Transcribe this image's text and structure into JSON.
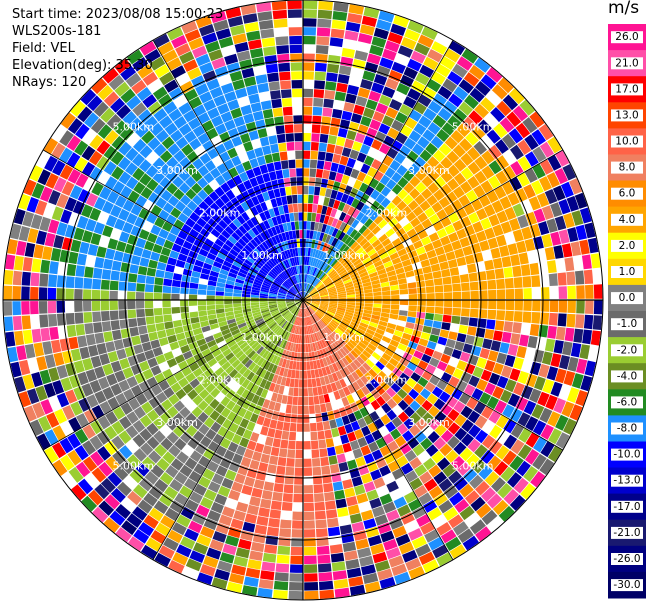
{
  "header": {
    "start_time": "Start time: 2023/08/08 15:00:23",
    "instrument": "WLS200s-181",
    "field": "Field: VEL",
    "elevation": "Elevation(deg): 35.30",
    "nrays": "NRays: 120"
  },
  "chart_data": {
    "type": "heatmap",
    "projection": "polar (PPI)",
    "field": "VEL",
    "units": "m/s",
    "nrays": 120,
    "range_rings": [
      {
        "label": "1.00km",
        "range_km": 1.0
      },
      {
        "label": "2.00km",
        "range_km": 2.0
      },
      {
        "label": "3.00km",
        "range_km": 3.0
      },
      {
        "label": "5.00km",
        "range_km": 5.0
      }
    ],
    "colorbar": {
      "title": "m/s",
      "ticks": [
        "26.0",
        "21.0",
        "17.0",
        "13.0",
        "10.0",
        "8.0",
        "6.0",
        "4.0",
        "2.0",
        "1.0",
        "0.0",
        "-1.0",
        "-2.0",
        "-4.0",
        "-6.0",
        "-8.0",
        "-10.0",
        "-13.0",
        "-17.0",
        "-21.0",
        "-26.0",
        "-30.0"
      ],
      "colors": [
        "#ff1493",
        "#ff4fa8",
        "#ff0000",
        "#ff4500",
        "#ff6347",
        "#f08060",
        "#ff8c00",
        "#ffa500",
        "#ffff00",
        "#ffd700",
        "#808080",
        "#6b6b6b",
        "#9acd32",
        "#6b8e23",
        "#228b22",
        "#1e90ff",
        "#0000ff",
        "#0000cd",
        "#00008b",
        "#191970",
        "#000080",
        "#000066"
      ]
    },
    "near_field_pattern": [
      {
        "sector": "NW",
        "speed": "-6.0 to -10.0",
        "color_hint": "green/blue"
      },
      {
        "sector": "E",
        "speed": "2.0 to 4.0",
        "color_hint": "yellow"
      },
      {
        "sector": "S",
        "speed": "8.0 to 10.0",
        "color_hint": "salmon"
      },
      {
        "sector": "SW",
        "speed": "-2.0 to -4.0",
        "color_hint": "olive/yellow-green"
      }
    ]
  },
  "colors": {
    "background": "#ffffff",
    "ring_line": "#000000"
  }
}
